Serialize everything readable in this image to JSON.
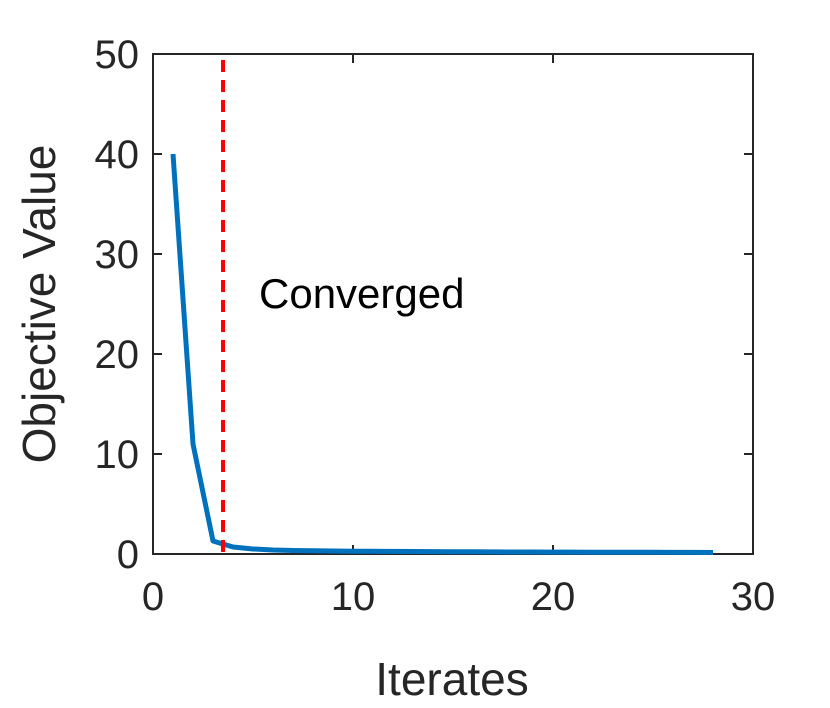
{
  "chart_data": {
    "type": "line",
    "xlabel": "Iterates",
    "ylabel": "Objective Value",
    "xlim": [
      0,
      30
    ],
    "ylim": [
      0,
      50
    ],
    "xticks": [
      0,
      10,
      20,
      30
    ],
    "yticks": [
      0,
      10,
      20,
      30,
      40,
      50
    ],
    "grid": false,
    "box": true,
    "series": [
      {
        "color": "#0072bd",
        "x": [
          1,
          2,
          3,
          4,
          5,
          6,
          7,
          8,
          9,
          10,
          11,
          12,
          13,
          14,
          15,
          16,
          17,
          18,
          19,
          20,
          21,
          22,
          23,
          24,
          25,
          26,
          27,
          28
        ],
        "y": [
          40,
          11,
          1.3,
          0.7,
          0.5,
          0.4,
          0.35,
          0.32,
          0.3,
          0.28,
          0.27,
          0.26,
          0.25,
          0.24,
          0.23,
          0.22,
          0.21,
          0.2,
          0.2,
          0.19,
          0.19,
          0.18,
          0.18,
          0.17,
          0.17,
          0.16,
          0.16,
          0.15
        ]
      }
    ],
    "reference_line": {
      "orientation": "vertical",
      "x": 3.5,
      "color": "#ff0000",
      "style": "dashed"
    },
    "annotations": [
      {
        "text": "Converged",
        "x": 5.3,
        "y": 26
      }
    ]
  }
}
